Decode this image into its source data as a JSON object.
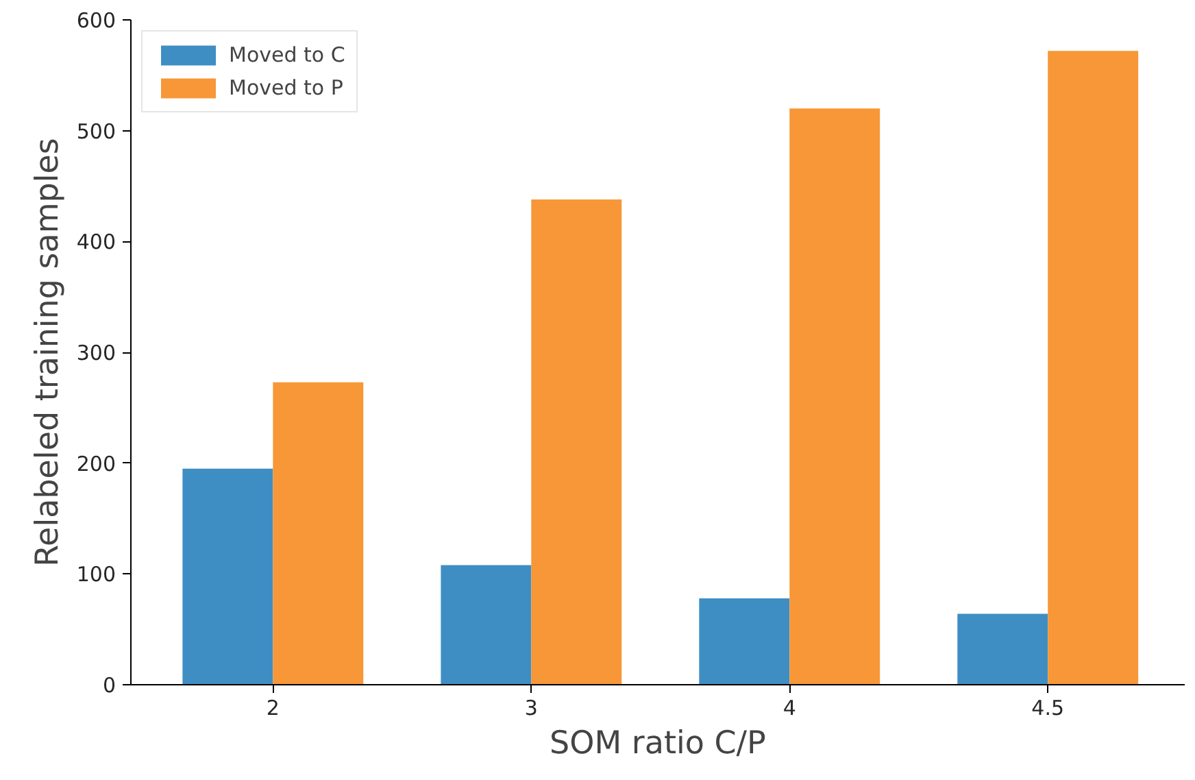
{
  "chart_data": {
    "type": "bar",
    "xlabel": "SOM ratio C/P",
    "ylabel": "Relabeled training samples",
    "categories": [
      "2",
      "3",
      "4",
      "4.5"
    ],
    "series": [
      {
        "name": "Moved to C",
        "color": "#3e8ec4",
        "values": [
          195,
          108,
          78,
          64
        ]
      },
      {
        "name": "Moved to P",
        "color": "#f79737",
        "values": [
          273,
          438,
          520,
          572
        ]
      }
    ],
    "ylim": [
      0,
      600
    ],
    "yticks": [
      0,
      100,
      200,
      300,
      400,
      500,
      600
    ],
    "grid": false,
    "legend": "top left"
  }
}
